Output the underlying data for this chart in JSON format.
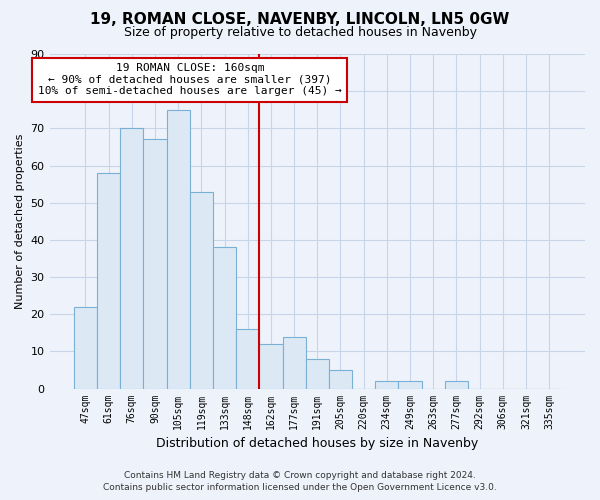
{
  "title": "19, ROMAN CLOSE, NAVENBY, LINCOLN, LN5 0GW",
  "subtitle": "Size of property relative to detached houses in Navenby",
  "xlabel": "Distribution of detached houses by size in Navenby",
  "ylabel": "Number of detached properties",
  "bar_labels": [
    "47sqm",
    "61sqm",
    "76sqm",
    "90sqm",
    "105sqm",
    "119sqm",
    "133sqm",
    "148sqm",
    "162sqm",
    "177sqm",
    "191sqm",
    "205sqm",
    "220sqm",
    "234sqm",
    "249sqm",
    "263sqm",
    "277sqm",
    "292sqm",
    "306sqm",
    "321sqm",
    "335sqm"
  ],
  "bar_values": [
    22,
    58,
    70,
    67,
    75,
    53,
    38,
    16,
    12,
    14,
    8,
    5,
    0,
    2,
    2,
    0,
    2,
    0,
    0,
    0,
    0
  ],
  "bar_color": "#dce9f5",
  "bar_edge_color": "#7ab0d4",
  "vline_color": "#cc0000",
  "annotation_title": "19 ROMAN CLOSE: 160sqm",
  "annotation_line1": "← 90% of detached houses are smaller (397)",
  "annotation_line2": "10% of semi-detached houses are larger (45) →",
  "annotation_box_color": "#ffffff",
  "annotation_box_edge": "#cc0000",
  "ylim": [
    0,
    90
  ],
  "yticks": [
    0,
    10,
    20,
    30,
    40,
    50,
    60,
    70,
    80,
    90
  ],
  "footer_line1": "Contains HM Land Registry data © Crown copyright and database right 2024.",
  "footer_line2": "Contains public sector information licensed under the Open Government Licence v3.0.",
  "bg_color": "#eef2fa",
  "grid_color": "#c8d4e8",
  "title_fontsize": 11,
  "subtitle_fontsize": 9,
  "ylabel_fontsize": 8,
  "xlabel_fontsize": 9,
  "tick_fontsize": 7,
  "footer_fontsize": 6.5
}
